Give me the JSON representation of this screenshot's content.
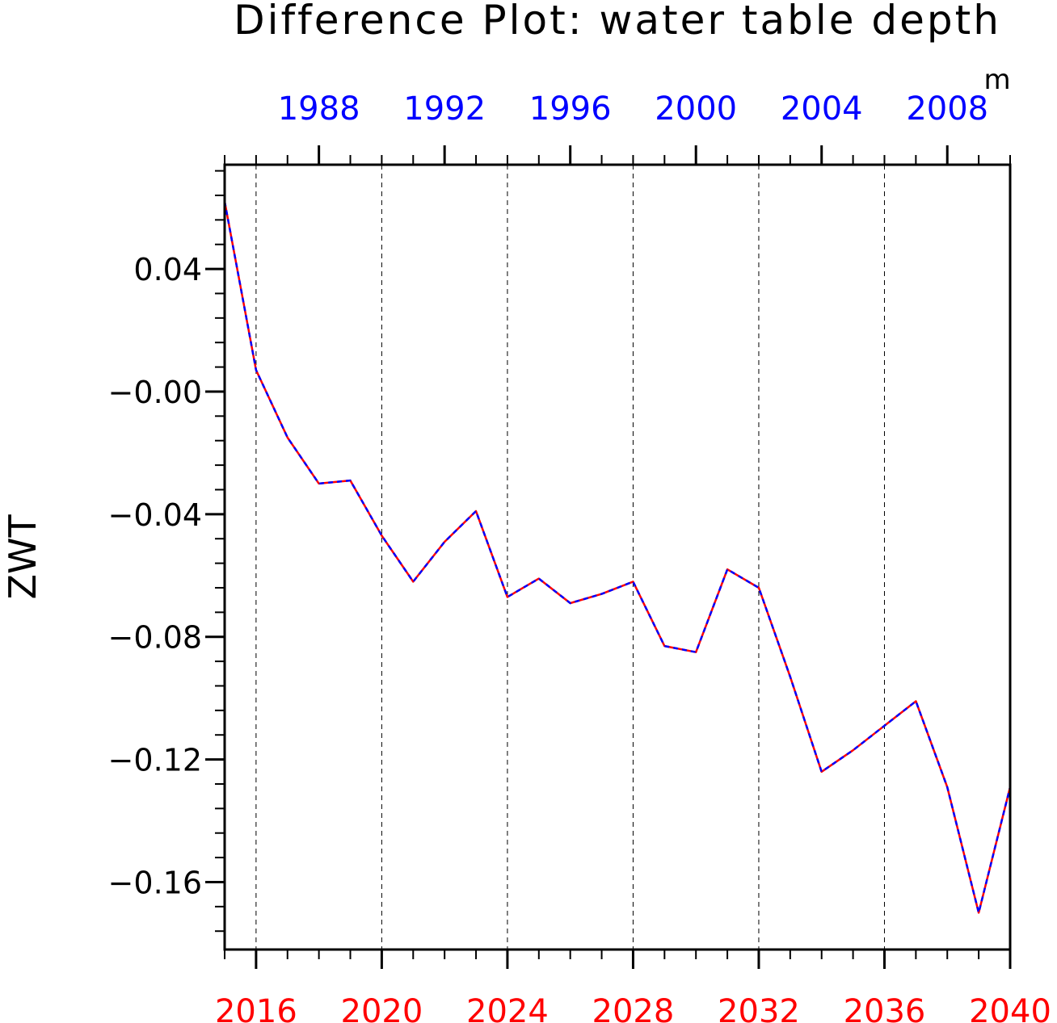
{
  "chart_data": {
    "type": "line",
    "title": "Difference Plot: water table depth",
    "units": "m",
    "ylabel": "ZWT",
    "ylim": [
      -0.182,
      0.074
    ],
    "yticks": [
      0.04,
      0.0,
      -0.04,
      -0.08,
      -0.12,
      -0.16
    ],
    "ytick_labels": [
      "0.04",
      "−0.00",
      "−0.04",
      "−0.08",
      "−0.12",
      "−0.16"
    ],
    "y_minor_step": 0.008,
    "bottom_axis": {
      "range": [
        2015,
        2040
      ],
      "ticks": [
        2016,
        2020,
        2024,
        2028,
        2032,
        2036,
        2040
      ],
      "labels": [
        "2016",
        "2020",
        "2024",
        "2028",
        "2032",
        "2036",
        "2040"
      ],
      "color": "#ff0000"
    },
    "top_axis": {
      "range": [
        1985,
        2010
      ],
      "ticks": [
        1988,
        1992,
        1996,
        2000,
        2004,
        2008
      ],
      "labels": [
        "1988",
        "1992",
        "1996",
        "2000",
        "2004",
        "2008"
      ],
      "color": "#0000ff"
    },
    "grid": "vertical dashed at bottom-axis major ticks",
    "x": [
      2015,
      2016,
      2017,
      2018,
      2019,
      2020,
      2021,
      2022,
      2023,
      2024,
      2025,
      2026,
      2027,
      2028,
      2029,
      2030,
      2031,
      2032,
      2033,
      2034,
      2035,
      2036,
      2037,
      2038,
      2039,
      2040
    ],
    "series": [
      {
        "line_style": "dashed",
        "color": "#0000ff",
        "values": [
          0.062,
          0.007,
          -0.015,
          -0.03,
          -0.029,
          -0.047,
          -0.062,
          -0.049,
          -0.039,
          -0.067,
          -0.061,
          -0.069,
          -0.066,
          -0.062,
          -0.083,
          -0.085,
          -0.058,
          -0.064,
          -0.093,
          -0.124,
          -0.117,
          -0.109,
          -0.101,
          -0.129,
          -0.17,
          -0.129
        ]
      },
      {
        "line_style": "solid",
        "color": "#ff0000",
        "values": [
          0.062,
          0.007,
          -0.015,
          -0.03,
          -0.029,
          -0.047,
          -0.062,
          -0.049,
          -0.039,
          -0.067,
          -0.061,
          -0.069,
          -0.066,
          -0.062,
          -0.083,
          -0.085,
          -0.058,
          -0.064,
          -0.093,
          -0.124,
          -0.117,
          -0.109,
          -0.101,
          -0.129,
          -0.17,
          -0.129
        ]
      }
    ]
  }
}
